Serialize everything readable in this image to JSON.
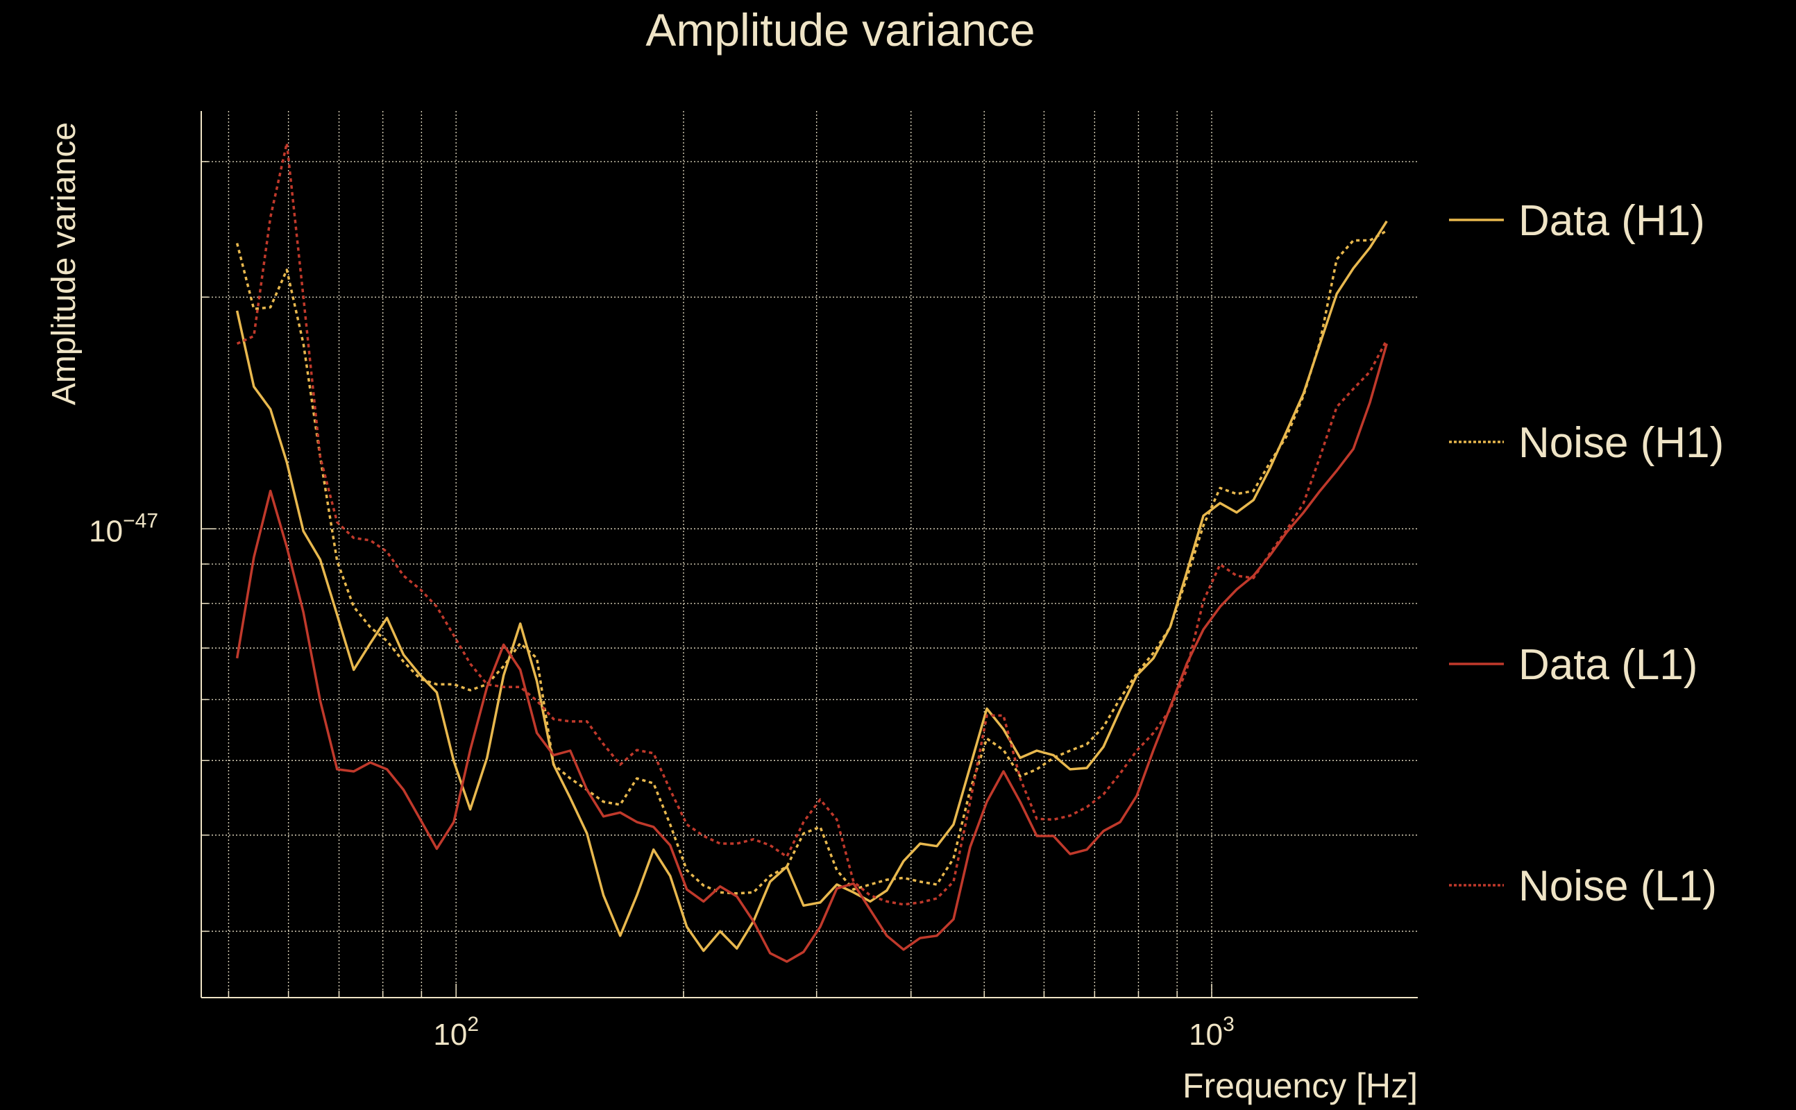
{
  "chart_data": {
    "type": "line",
    "title": "Amplitude variance",
    "xlabel": "Frequency [Hz]",
    "ylabel": "Amplitude variance",
    "xscale": "log",
    "yscale": "log",
    "xlim": [
      46,
      1874
    ],
    "ylim": [
      2.46e-48,
      3.49e-47
    ],
    "value_unit": 1e-48,
    "grid": true,
    "legend_position": "right",
    "x_ticks": [
      {
        "base": "10",
        "exp": "2",
        "value": 100
      },
      {
        "base": "10",
        "exp": "3",
        "value": 1000
      }
    ],
    "y_ticks": [
      {
        "base": "10",
        "exp": "−47",
        "value": 1e-47
      }
    ],
    "colors": {
      "h1": "#e8b84e",
      "l1": "#c0392b",
      "text": "#efe4c6"
    },
    "x": [
      51.3,
      54.0,
      56.8,
      59.7,
      62.8,
      66.1,
      69.6,
      73.2,
      77.0,
      81.0,
      85.2,
      89.7,
      94.3,
      99.3,
      104.4,
      109.9,
      115.6,
      121.6,
      127.9,
      134.6,
      141.6,
      149.0,
      156.7,
      164.9,
      173.5,
      182.5,
      192.0,
      202.0,
      212.6,
      223.6,
      235.3,
      247.5,
      260.4,
      274.0,
      288.3,
      303.3,
      319.1,
      335.7,
      353.2,
      371.6,
      391.0,
      411.3,
      432.8,
      455.3,
      479.0,
      504.0,
      530.2,
      557.8,
      586.9,
      617.5,
      649.6,
      683.5,
      719.1,
      756.5,
      795.9,
      837.4,
      881.0,
      926.9,
      975.2,
      1026,
      1079,
      1136,
      1195,
      1257,
      1323,
      1391,
      1464,
      1540,
      1620,
      1705
    ],
    "series": [
      {
        "name": "Data (H1)",
        "color": "#e8b84e",
        "style": "solid",
        "values": [
          19.2,
          15.3,
          14.3,
          12.2,
          9.93,
          9.12,
          7.73,
          6.56,
          7.1,
          7.66,
          6.86,
          6.45,
          6.13,
          4.99,
          4.32,
          5.04,
          6.45,
          7.53,
          6.34,
          4.94,
          4.47,
          4.02,
          3.34,
          2.96,
          3.34,
          3.83,
          3.54,
          3.04,
          2.83,
          3.0,
          2.85,
          3.09,
          3.48,
          3.64,
          3.24,
          3.27,
          3.45,
          3.37,
          3.28,
          3.39,
          3.7,
          3.9,
          3.87,
          4.13,
          4.91,
          5.84,
          5.49,
          5.04,
          5.15,
          5.08,
          4.87,
          4.89,
          5.21,
          5.82,
          6.45,
          6.79,
          7.45,
          8.78,
          10.4,
          10.8,
          10.5,
          10.9,
          12.0,
          13.4,
          15.0,
          17.4,
          20.2,
          21.8,
          23.2,
          25.1
        ]
      },
      {
        "name": "Noise (H1)",
        "color": "#e8b84e",
        "style": "dotted",
        "values": [
          23.5,
          19.3,
          19.4,
          21.7,
          17.4,
          12.4,
          9.08,
          7.92,
          7.45,
          7.15,
          6.72,
          6.38,
          6.28,
          6.28,
          6.17,
          6.28,
          6.63,
          7.1,
          6.79,
          4.94,
          4.74,
          4.58,
          4.42,
          4.38,
          4.74,
          4.67,
          4.13,
          3.6,
          3.44,
          3.37,
          3.36,
          3.37,
          3.54,
          3.64,
          4.02,
          4.1,
          3.6,
          3.4,
          3.45,
          3.5,
          3.52,
          3.48,
          3.45,
          3.73,
          4.58,
          5.34,
          5.16,
          4.77,
          4.87,
          5.04,
          5.15,
          5.25,
          5.53,
          6.02,
          6.49,
          6.9,
          7.45,
          8.63,
          10.1,
          11.3,
          11.1,
          11.2,
          12.2,
          13.2,
          14.9,
          17.5,
          22.4,
          23.7,
          23.7,
          24.4
        ]
      },
      {
        "name": "Data (L1)",
        "color": "#c0392b",
        "style": "solid",
        "values": [
          6.79,
          9.18,
          11.2,
          9.47,
          7.79,
          5.98,
          4.87,
          4.84,
          4.97,
          4.87,
          4.58,
          4.19,
          3.84,
          4.16,
          5.16,
          6.23,
          7.07,
          6.56,
          5.43,
          5.08,
          5.15,
          4.58,
          4.23,
          4.28,
          4.16,
          4.1,
          3.88,
          3.4,
          3.28,
          3.43,
          3.33,
          3.09,
          2.81,
          2.74,
          2.82,
          3.04,
          3.41,
          3.46,
          3.2,
          2.96,
          2.84,
          2.94,
          2.96,
          3.11,
          3.86,
          4.42,
          4.84,
          4.42,
          3.99,
          3.99,
          3.78,
          3.83,
          4.05,
          4.16,
          4.5,
          5.16,
          5.86,
          6.68,
          7.4,
          7.92,
          8.34,
          8.69,
          9.24,
          9.9,
          10.5,
          11.2,
          11.9,
          12.7,
          14.6,
          17.4
        ]
      },
      {
        "name": "Noise (L1)",
        "color": "#c0392b",
        "style": "dotted",
        "values": [
          17.4,
          17.8,
          25.4,
          31.7,
          20.0,
          12.4,
          10.2,
          9.73,
          9.66,
          9.34,
          8.69,
          8.34,
          7.92,
          7.27,
          6.68,
          6.28,
          6.23,
          6.23,
          5.98,
          5.66,
          5.62,
          5.62,
          5.25,
          4.94,
          5.16,
          5.11,
          4.58,
          4.13,
          3.99,
          3.9,
          3.9,
          3.95,
          3.88,
          3.75,
          4.16,
          4.45,
          4.19,
          3.48,
          3.34,
          3.28,
          3.25,
          3.27,
          3.31,
          3.48,
          4.42,
          5.72,
          5.72,
          4.74,
          4.2,
          4.19,
          4.24,
          4.35,
          4.52,
          4.81,
          5.15,
          5.43,
          5.82,
          6.56,
          8.06,
          8.99,
          8.69,
          8.63,
          9.3,
          9.97,
          10.8,
          12.4,
          14.4,
          15.2,
          16.0,
          17.6
        ]
      }
    ]
  }
}
